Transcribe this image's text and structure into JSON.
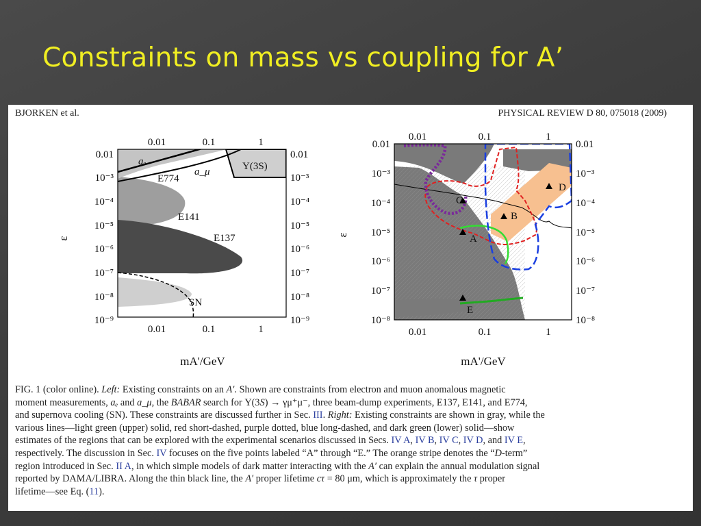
{
  "slide": {
    "title": "Constraints on mass vs coupling for A’"
  },
  "header": {
    "authors": "BJORKEN et al.",
    "journal": "PHYSICAL REVIEW D 80, 075018 (2009)"
  },
  "left_plot": {
    "x_ticks": [
      "0.01",
      "0.1",
      "1"
    ],
    "y_ticks": [
      "0.01",
      "10⁻³",
      "10⁻⁴",
      "10⁻⁵",
      "10⁻⁶",
      "10⁻⁷",
      "10⁻⁸",
      "10⁻⁹"
    ],
    "xlabel": "mA'/GeV",
    "ylabel": "ε",
    "labels": {
      "ae": "aₑ",
      "amu": "a_μ",
      "upsilon": "Υ(3S)",
      "e774": "E774",
      "e141": "E141",
      "e137": "E137",
      "sn": "SN"
    }
  },
  "right_plot": {
    "x_ticks": [
      "0.01",
      "0.1",
      "1"
    ],
    "y_ticks": [
      "0.01",
      "10⁻³",
      "10⁻⁴",
      "10⁻⁵",
      "10⁻⁶",
      "10⁻⁷",
      "10⁻⁸"
    ],
    "xlabel": "mA'/GeV",
    "ylabel": "ε",
    "points": [
      "A",
      "B",
      "C",
      "D",
      "E"
    ]
  },
  "caption": {
    "lines": [
      [
        {
          "t": "FIG. 1 (color online).   "
        },
        {
          "t": "Left:",
          "i": true
        },
        {
          "t": " Existing constraints on an "
        },
        {
          "t": "A′",
          "i": true
        },
        {
          "t": ". Shown are constraints from electron and muon anomalous magnetic"
        }
      ],
      [
        {
          "t": "moment measurements, "
        },
        {
          "t": "aₑ",
          "i": true
        },
        {
          "t": " and "
        },
        {
          "t": "a_μ",
          "i": true
        },
        {
          "t": ", the "
        },
        {
          "t": "BABAR",
          "i": true
        },
        {
          "t": " search for Υ(3"
        },
        {
          "t": "S",
          "i": true
        },
        {
          "t": ") → γμ⁺μ⁻, three beam-dump experiments, E137, E141, and E774,"
        }
      ],
      [
        {
          "t": "and supernova cooling (SN). These constraints are discussed further in Sec. "
        },
        {
          "t": "III",
          "r": true
        },
        {
          "t": ". "
        },
        {
          "t": "Right:",
          "i": true
        },
        {
          "t": " Existing constraints are shown in gray, while the"
        }
      ],
      [
        {
          "t": "various lines—light green (upper) solid, red short-dashed, purple dotted, blue long-dashed, and dark green (lower) solid—show"
        }
      ],
      [
        {
          "t": "estimates of the regions that can be explored with the experimental scenarios discussed in Secs. "
        },
        {
          "t": "IV A",
          "r": true
        },
        {
          "t": ", "
        },
        {
          "t": "IV B",
          "r": true
        },
        {
          "t": ", "
        },
        {
          "t": "IV C",
          "r": true
        },
        {
          "t": ", "
        },
        {
          "t": "IV D",
          "r": true
        },
        {
          "t": ", and "
        },
        {
          "t": "IV E",
          "r": true
        },
        {
          "t": ","
        }
      ],
      [
        {
          "t": "respectively. The discussion in Sec. "
        },
        {
          "t": "IV",
          "r": true
        },
        {
          "t": " focuses on the five points labeled “A” through “E.” The orange stripe denotes the “"
        },
        {
          "t": "D",
          "i": true
        },
        {
          "t": "-term”"
        }
      ],
      [
        {
          "t": "region introduced in Sec. "
        },
        {
          "t": "II A",
          "r": true
        },
        {
          "t": ", in which simple models of dark matter interacting with the "
        },
        {
          "t": "A′",
          "i": true
        },
        {
          "t": " can explain the annual modulation signal"
        }
      ],
      [
        {
          "t": "reported by DAMA/LIBRA. Along the thin black line, the "
        },
        {
          "t": "A′",
          "i": true
        },
        {
          "t": " proper lifetime "
        },
        {
          "t": "cτ",
          "i": true
        },
        {
          "t": " = 80 μm, which is approximately the "
        },
        {
          "t": "τ",
          "i": true
        },
        {
          "t": " proper"
        }
      ],
      [
        {
          "t": "lifetime—see Eq. ("
        },
        {
          "t": "11",
          "r": true
        },
        {
          "t": ")."
        }
      ]
    ]
  },
  "colors": {
    "title": "#f0ee22",
    "background": "#3f3f3f",
    "constraint_gray": "#7a7a7a",
    "light_green": "#33dd33",
    "dark_green": "#22aa22",
    "red": "#e02020",
    "purple": "#7a2a9a",
    "blue": "#1a3fe0",
    "orange": "#f7c090"
  }
}
